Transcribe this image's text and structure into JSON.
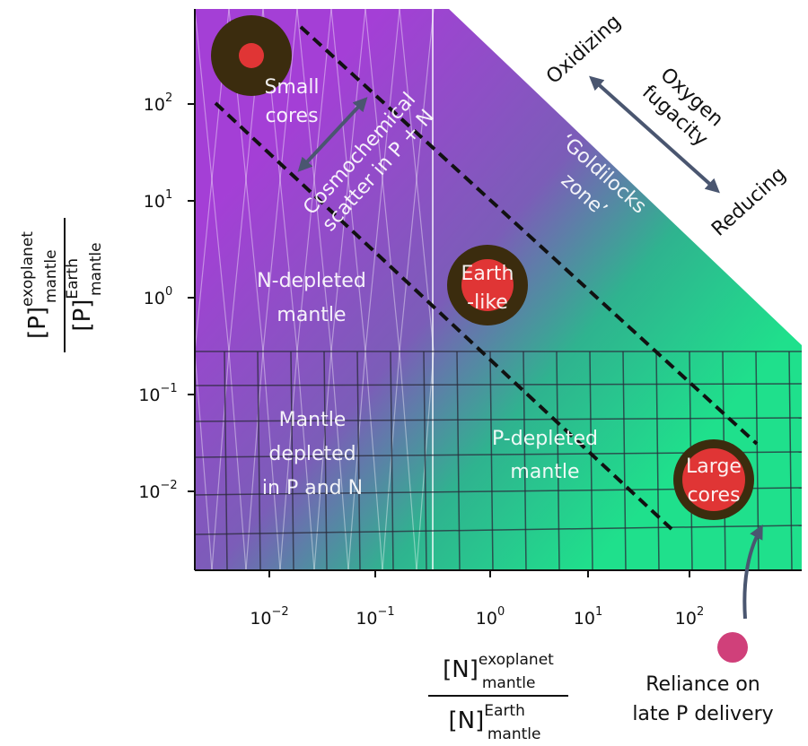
{
  "axes": {
    "x": {
      "ticks": [
        {
          "base": "10",
          "exp": "−2"
        },
        {
          "base": "10",
          "exp": "−1"
        },
        {
          "base": "10",
          "exp": "0"
        },
        {
          "base": "10",
          "exp": "1"
        },
        {
          "base": "10",
          "exp": "2"
        }
      ],
      "label": {
        "num_main": "[N]",
        "num_sup": "exoplanet",
        "num_sub": "mantle",
        "den_main": "[N]",
        "den_sup": "Earth",
        "den_sub": "mantle"
      }
    },
    "y": {
      "ticks": [
        {
          "base": "10",
          "exp": "2"
        },
        {
          "base": "10",
          "exp": "1"
        },
        {
          "base": "10",
          "exp": "0"
        },
        {
          "base": "10",
          "exp": "−1"
        },
        {
          "base": "10",
          "exp": "−2"
        }
      ],
      "label": {
        "num_main": "[P]",
        "num_sup": "exoplanet",
        "num_sub": "mantle",
        "den_main": "[P]",
        "den_sup": "Earth",
        "den_sub": "mantle"
      }
    }
  },
  "markers": {
    "small_cores": [
      "Small",
      "cores"
    ],
    "earth_like": [
      "Earth",
      "-like"
    ],
    "large_cores": [
      "Large",
      "cores"
    ]
  },
  "regions": {
    "n_depleted": [
      "N-depleted",
      "mantle"
    ],
    "p_depleted": [
      "P-depleted",
      "mantle"
    ],
    "both_depleted": [
      "Mantle",
      "depleted",
      "in P and N"
    ],
    "goldilocks": [
      "‘Goldilocks",
      "zone’"
    ]
  },
  "annotations": {
    "scatter": [
      "Cosmochemical",
      "scatter in P + N"
    ],
    "oxidizing": "Oxidizing",
    "fugacity": [
      "Oxygen",
      "fugacity"
    ],
    "reducing": "Reducing",
    "late_delivery": [
      "Reliance on",
      "late P delivery"
    ]
  }
}
